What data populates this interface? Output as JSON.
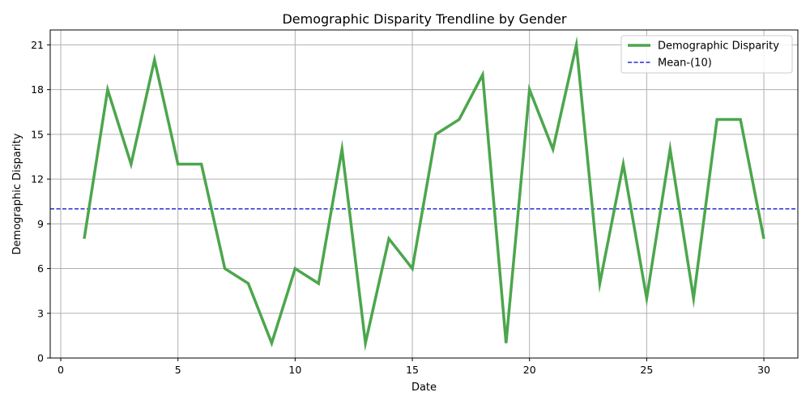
{
  "chart_data": {
    "type": "line",
    "title": "Demographic Disparity Trendline by Gender",
    "xlabel": "Date",
    "ylabel": "Demographic Disparity",
    "x": [
      1,
      2,
      3,
      4,
      5,
      6,
      7,
      8,
      9,
      10,
      11,
      12,
      13,
      14,
      15,
      16,
      17,
      18,
      19,
      20,
      21,
      22,
      23,
      24,
      25,
      26,
      27,
      28,
      29,
      30
    ],
    "series": [
      {
        "name": "Demographic Disparity",
        "color": "#4ca64c",
        "values": [
          8,
          18,
          13,
          20,
          13,
          13,
          6,
          5,
          1,
          6,
          5,
          14,
          1,
          8,
          6,
          15,
          16,
          19,
          1,
          18,
          14,
          21,
          5,
          13,
          4,
          14,
          4,
          16,
          16,
          8
        ]
      }
    ],
    "reference_lines": [
      {
        "name": "Mean-(10)",
        "value": 10,
        "color": "#0000cc",
        "style": "dashed"
      }
    ],
    "xlim": [
      -0.45,
      31.45
    ],
    "ylim": [
      0,
      22
    ],
    "xticks": [
      0,
      5,
      10,
      15,
      20,
      25,
      30
    ],
    "yticks": [
      0,
      3,
      6,
      9,
      12,
      15,
      18,
      21
    ],
    "grid": true,
    "legend": "top-right"
  }
}
